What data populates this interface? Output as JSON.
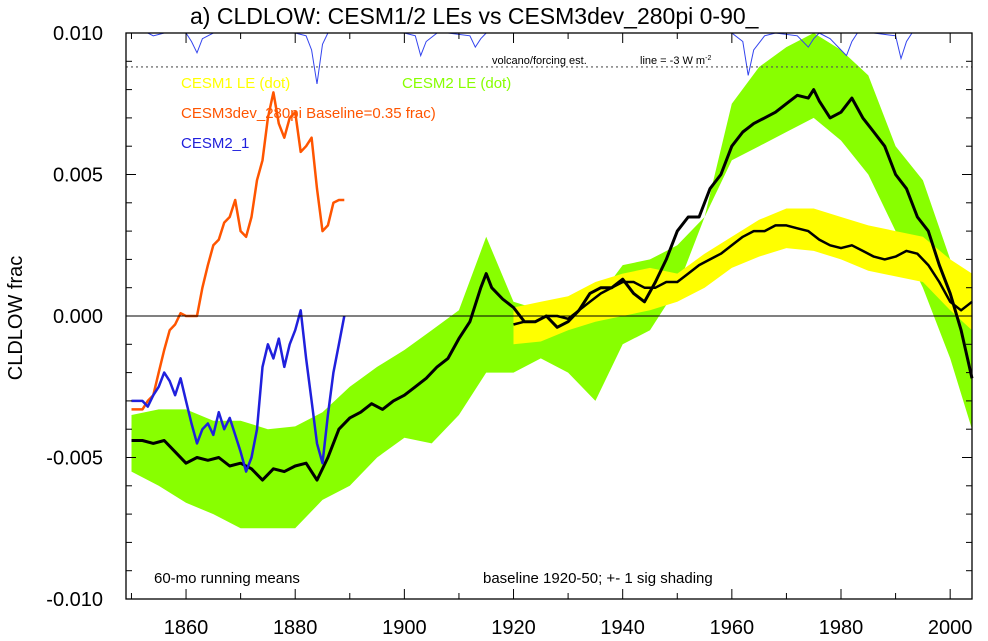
{
  "chart_data": {
    "type": "line",
    "title": "a) CLDLOW: CESM1/2 LEs vs CESM3dev_280pi 0-90_",
    "ylabel": "CLDLOW frac",
    "xlabel": "",
    "xlim": [
      1849,
      2004
    ],
    "ylim": [
      -0.01,
      0.01
    ],
    "x_ticks": [
      1860,
      1880,
      1900,
      1920,
      1940,
      1960,
      1980,
      2000
    ],
    "y_ticks": [
      -0.01,
      -0.005,
      0.0,
      0.005,
      0.01
    ],
    "y_tick_labels": [
      "-0.010",
      "-0.005",
      "0.000",
      "0.005",
      "0.010"
    ],
    "grid": false,
    "zero_line": 0,
    "legend": [
      {
        "label": "CESM1 LE (dot)",
        "color": "#ffff00"
      },
      {
        "label": "CESM2 LE (dot)",
        "color": "#88ff00"
      },
      {
        "label": "CESM3dev_280pi Baseline=0.35 frac)",
        "color": "#ff5500"
      },
      {
        "label": "CESM2_1",
        "color": "#2020dd"
      }
    ],
    "annotations": {
      "volcano_label": "volcano/forcing est.",
      "line_label": "line = -3 W m",
      "line_label_sup": "-2",
      "bottom_left": "60-mo running means",
      "bottom_right": "baseline 1920-50; +- 1 sig shading"
    },
    "volcano_dotted_level": 0.0088,
    "series": [
      {
        "style": "band",
        "color": "#88ff00",
        "x": [
          1850,
          1855,
          1860,
          1865,
          1870,
          1875,
          1880,
          1885,
          1890,
          1895,
          1900,
          1905,
          1910,
          1915,
          1920,
          1925,
          1930,
          1935,
          1940,
          1945,
          1950,
          1955,
          1960,
          1965,
          1970,
          1975,
          1980,
          1985,
          1990,
          1995,
          2000,
          2004
        ],
        "upper": [
          -0.0035,
          -0.0033,
          -0.0033,
          -0.0037,
          -0.0037,
          -0.004,
          -0.0039,
          -0.0034,
          -0.0025,
          -0.0018,
          -0.0012,
          -0.0005,
          0.0002,
          0.0028,
          0.0005,
          0.0002,
          -0.0001,
          0.0005,
          0.0018,
          0.002,
          0.0025,
          0.0035,
          0.0075,
          0.0088,
          0.0095,
          0.01,
          0.0094,
          0.0085,
          0.006,
          0.0048,
          0.002,
          0.0
        ],
        "lower": [
          -0.0055,
          -0.006,
          -0.0066,
          -0.007,
          -0.0075,
          -0.0075,
          -0.0075,
          -0.0065,
          -0.006,
          -0.005,
          -0.0043,
          -0.0045,
          -0.0035,
          -0.002,
          -0.002,
          -0.0015,
          -0.002,
          -0.003,
          -0.001,
          -0.0005,
          0.001,
          0.0035,
          0.0055,
          0.006,
          0.0065,
          0.007,
          0.0062,
          0.005,
          0.003,
          0.001,
          -0.0015,
          -0.004
        ]
      },
      {
        "style": "band",
        "color": "#ffff00",
        "x": [
          1920,
          1925,
          1930,
          1935,
          1940,
          1945,
          1950,
          1955,
          1960,
          1965,
          1970,
          1975,
          1980,
          1985,
          1990,
          1995,
          2000,
          2004
        ],
        "upper": [
          0.0003,
          0.0005,
          0.0007,
          0.0012,
          0.0015,
          0.0017,
          0.0015,
          0.0022,
          0.0028,
          0.0034,
          0.0038,
          0.0038,
          0.0035,
          0.0032,
          0.003,
          0.0028,
          0.002,
          0.0015
        ],
        "lower": [
          -0.001,
          -0.0009,
          -0.0005,
          -0.0002,
          0.0,
          0.0002,
          0.0005,
          0.001,
          0.0017,
          0.0021,
          0.0024,
          0.0023,
          0.002,
          0.0016,
          0.0014,
          0.0012,
          0.0002,
          -0.0005
        ]
      },
      {
        "style": "line",
        "color": "#000000",
        "width": 3,
        "x": [
          1850,
          1852,
          1854,
          1856,
          1858,
          1860,
          1862,
          1864,
          1866,
          1868,
          1870,
          1872,
          1874,
          1876,
          1878,
          1880,
          1882,
          1884,
          1886,
          1888,
          1890,
          1892,
          1894,
          1896,
          1898,
          1900,
          1902,
          1904,
          1906,
          1908,
          1910,
          1912,
          1914,
          1915,
          1916,
          1918,
          1920,
          1922,
          1924,
          1926,
          1928,
          1930,
          1932,
          1934,
          1936,
          1938,
          1940,
          1942,
          1944,
          1946,
          1948,
          1950,
          1952,
          1954,
          1956,
          1958,
          1960,
          1962,
          1964,
          1966,
          1968,
          1970,
          1972,
          1974,
          1975,
          1976,
          1978,
          1980,
          1982,
          1984,
          1986,
          1988,
          1990,
          1992,
          1994,
          1996,
          1998,
          2000,
          2002,
          2004
        ],
        "y": [
          -0.0044,
          -0.0044,
          -0.0045,
          -0.0044,
          -0.0048,
          -0.0052,
          -0.005,
          -0.0051,
          -0.005,
          -0.0053,
          -0.0052,
          -0.0054,
          -0.0058,
          -0.0054,
          -0.0055,
          -0.0053,
          -0.0052,
          -0.0058,
          -0.005,
          -0.004,
          -0.0036,
          -0.0034,
          -0.0031,
          -0.0033,
          -0.003,
          -0.0028,
          -0.0025,
          -0.0022,
          -0.0018,
          -0.0015,
          -0.0008,
          -0.0002,
          0.001,
          0.0015,
          0.001,
          0.0006,
          0.0003,
          -0.0002,
          -0.0002,
          0.0,
          -0.0004,
          -0.0002,
          0.0002,
          0.0008,
          0.001,
          0.001,
          0.0013,
          0.0008,
          0.0005,
          0.0012,
          0.002,
          0.003,
          0.0035,
          0.0035,
          0.0045,
          0.005,
          0.006,
          0.0065,
          0.0068,
          0.007,
          0.0072,
          0.0075,
          0.0078,
          0.0077,
          0.008,
          0.0076,
          0.007,
          0.0072,
          0.0077,
          0.007,
          0.0065,
          0.006,
          0.005,
          0.0045,
          0.0035,
          0.003,
          0.0018,
          0.0008,
          -0.0005,
          -0.0022
        ]
      },
      {
        "style": "line",
        "color": "#000000",
        "width": 2.5,
        "x": [
          1920,
          1922,
          1924,
          1926,
          1928,
          1930,
          1932,
          1934,
          1936,
          1938,
          1940,
          1942,
          1944,
          1946,
          1948,
          1950,
          1952,
          1954,
          1956,
          1958,
          1960,
          1962,
          1964,
          1966,
          1968,
          1970,
          1972,
          1974,
          1976,
          1978,
          1980,
          1982,
          1984,
          1986,
          1988,
          1990,
          1992,
          1994,
          1996,
          1998,
          2000,
          2002,
          2004
        ],
        "y": [
          -0.0003,
          -0.0002,
          -0.0002,
          0.0,
          0.0,
          -0.0001,
          0.0002,
          0.0005,
          0.0008,
          0.001,
          0.0012,
          0.0012,
          0.001,
          0.001,
          0.0012,
          0.0012,
          0.0015,
          0.0018,
          0.002,
          0.0022,
          0.0025,
          0.0028,
          0.003,
          0.003,
          0.0032,
          0.0032,
          0.0031,
          0.003,
          0.0027,
          0.0025,
          0.0024,
          0.0025,
          0.0023,
          0.0021,
          0.002,
          0.0021,
          0.0023,
          0.0022,
          0.0018,
          0.0012,
          0.0005,
          0.0002,
          0.0005
        ]
      },
      {
        "style": "line",
        "color": "#ff5500",
        "width": 2.5,
        "x": [
          1850,
          1851,
          1852,
          1853,
          1854,
          1855,
          1856,
          1857,
          1858,
          1859,
          1860,
          1861,
          1862,
          1863,
          1864,
          1865,
          1866,
          1867,
          1868,
          1869,
          1870,
          1871,
          1872,
          1873,
          1874,
          1875,
          1876,
          1877,
          1878,
          1879,
          1880,
          1881,
          1882,
          1883,
          1884,
          1885,
          1886,
          1887,
          1888,
          1889
        ],
        "y": [
          -0.0033,
          -0.0033,
          -0.0033,
          -0.003,
          -0.0028,
          -0.002,
          -0.0012,
          -0.0005,
          -0.0003,
          0.0001,
          0.0,
          0.0,
          0.0,
          0.001,
          0.0018,
          0.0025,
          0.0027,
          0.0033,
          0.0035,
          0.0041,
          0.003,
          0.0028,
          0.0035,
          0.0048,
          0.0055,
          0.007,
          0.0079,
          0.0068,
          0.0063,
          0.007,
          0.0072,
          0.0058,
          0.006,
          0.0063,
          0.0045,
          0.003,
          0.0032,
          0.004,
          0.0041,
          0.0041
        ]
      },
      {
        "style": "line",
        "color": "#2020dd",
        "width": 2.5,
        "x": [
          1850,
          1851,
          1852,
          1853,
          1854,
          1855,
          1856,
          1857,
          1858,
          1859,
          1860,
          1861,
          1862,
          1863,
          1864,
          1865,
          1866,
          1867,
          1868,
          1869,
          1870,
          1871,
          1872,
          1873,
          1874,
          1875,
          1876,
          1877,
          1878,
          1879,
          1880,
          1881,
          1882,
          1883,
          1884,
          1885,
          1886,
          1887,
          1888,
          1889
        ],
        "y": [
          -0.003,
          -0.003,
          -0.003,
          -0.0032,
          -0.0028,
          -0.0025,
          -0.002,
          -0.0023,
          -0.0028,
          -0.0022,
          -0.003,
          -0.0038,
          -0.0045,
          -0.004,
          -0.0038,
          -0.0042,
          -0.0034,
          -0.004,
          -0.0036,
          -0.0042,
          -0.0048,
          -0.0055,
          -0.005,
          -0.004,
          -0.0018,
          -0.001,
          -0.0015,
          -0.0008,
          -0.0018,
          -0.001,
          -0.0005,
          0.0002,
          -0.0015,
          -0.003,
          -0.0045,
          -0.0052,
          -0.0035,
          -0.002,
          -0.001,
          0.0
        ]
      }
    ],
    "volcano_series": {
      "color": "#3344ee",
      "x": [
        1850,
        1853,
        1854,
        1856,
        1858,
        1860,
        1861,
        1862,
        1863,
        1865,
        1880,
        1882,
        1883,
        1884,
        1885,
        1886,
        1888,
        1900,
        1902,
        1903,
        1904,
        1906,
        1908,
        1912,
        1913,
        1914,
        1915,
        1918,
        1922,
        1930,
        1940,
        1960,
        1962,
        1963,
        1964,
        1966,
        1968,
        1972,
        1974,
        1975,
        1976,
        1978,
        1980,
        1981,
        1982,
        1983,
        1984,
        1986,
        1990,
        1991,
        1992,
        1993,
        1996,
        2000,
        2004
      ],
      "y": [
        0.01,
        0.01,
        0.0099,
        0.01,
        0.01,
        0.01,
        0.0097,
        0.0093,
        0.0098,
        0.01,
        0.01,
        0.0099,
        0.0094,
        0.0082,
        0.0096,
        0.01,
        0.01,
        0.01,
        0.0099,
        0.0092,
        0.0097,
        0.01,
        0.01,
        0.0099,
        0.0095,
        0.0098,
        0.01,
        0.01,
        0.01,
        0.01,
        0.01,
        0.01,
        0.0097,
        0.0085,
        0.0094,
        0.0099,
        0.01,
        0.0099,
        0.0095,
        0.0098,
        0.01,
        0.0098,
        0.0094,
        0.0092,
        0.0097,
        0.01,
        0.01,
        0.01,
        0.0099,
        0.0091,
        0.0097,
        0.01,
        0.01,
        0.01,
        0.01
      ]
    }
  }
}
